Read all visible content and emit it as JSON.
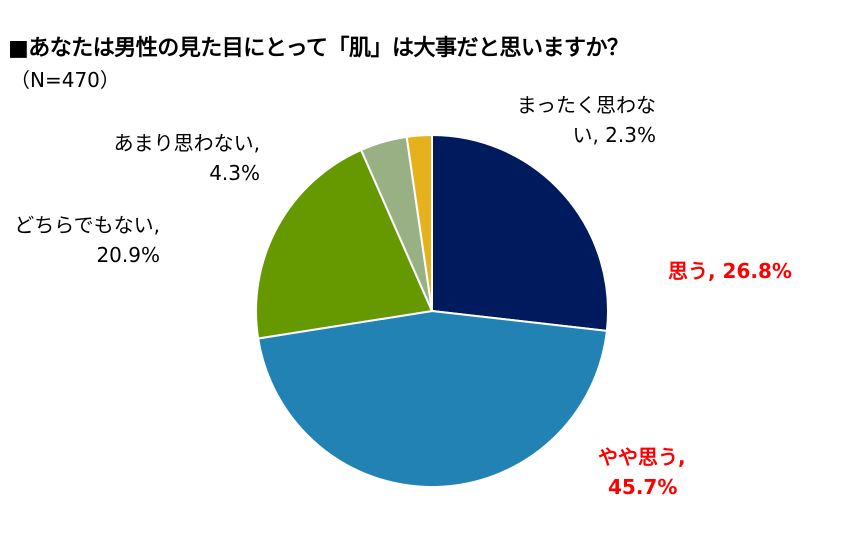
{
  "title": "■あなたは男性の見た目にとって「肌」は大事だと思いますか？",
  "subtitle": "（N=470）",
  "colors": {
    "highlight_label": "#ff0000",
    "normal_label": "#000000"
  },
  "chart_data": {
    "type": "pie",
    "start": "12 o'clock",
    "direction": "clockwise",
    "legend": "none",
    "slices": [
      {
        "category": "思う",
        "value": 26.8,
        "label_line1": "思う, 26.8%",
        "label_line2": "",
        "color": "#001a5e",
        "label_color": "#ff0000"
      },
      {
        "category": "やや思う",
        "value": 45.7,
        "label_line1": "やや思う,",
        "label_line2": "45.7%",
        "color": "#2282b4",
        "label_color": "#ff0000"
      },
      {
        "category": "どちらでもない",
        "value": 20.9,
        "label_line1": "どちらでもない,",
        "label_line2": "20.9%",
        "color": "#669900",
        "label_color": "#000000"
      },
      {
        "category": "あまり思わない",
        "value": 4.3,
        "label_line1": "あまり思わない,",
        "label_line2": "4.3%",
        "color": "#99b085",
        "label_color": "#000000"
      },
      {
        "category": "まったく思わない",
        "value": 2.3,
        "label_line1": "まったく思わな",
        "label_line2": "い, 2.3%",
        "color": "#e5b21e",
        "label_color": "#000000"
      }
    ]
  }
}
